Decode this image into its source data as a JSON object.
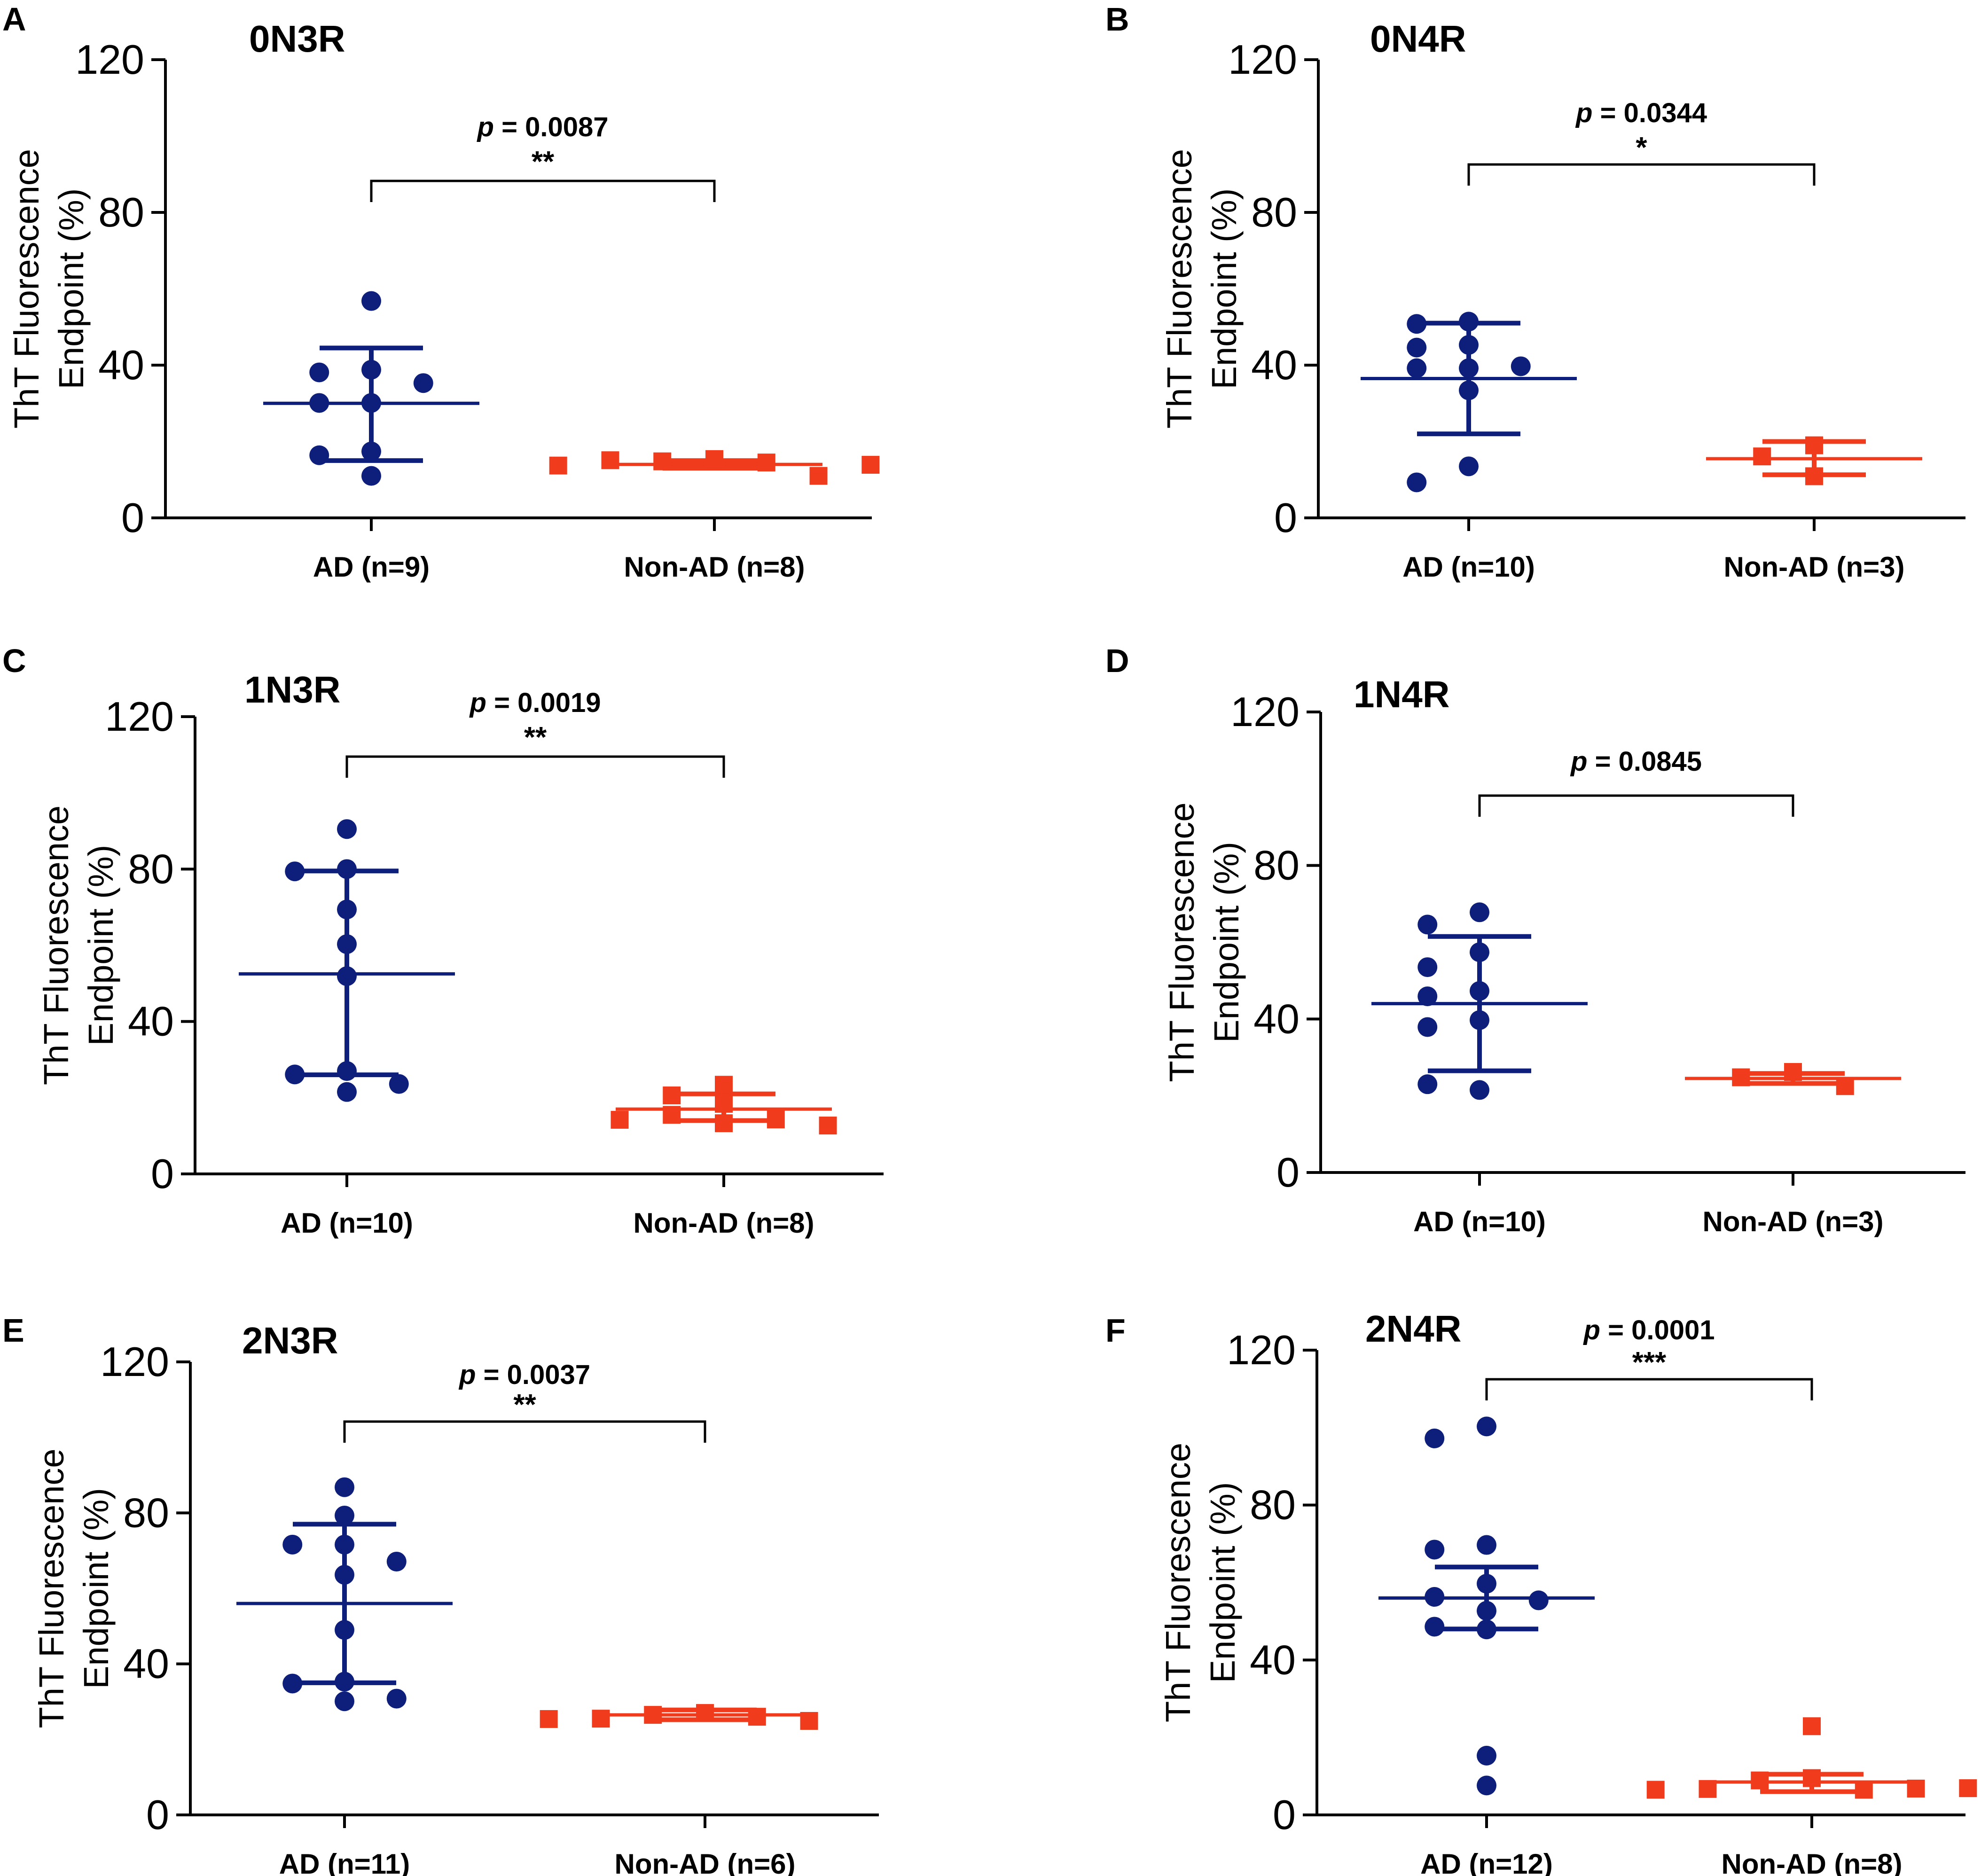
{
  "figure": {
    "y_axis_label_line1": "ThT Fluorescence",
    "y_axis_label_line2": "Endpoint (%)",
    "colors": {
      "ad": "#0d1f7a",
      "non_ad": "#f03b1c",
      "axis": "#000000"
    }
  },
  "chart_data": [
    {
      "panel": "A",
      "title": "0N3R",
      "type": "scatter",
      "ylim": [
        0,
        120
      ],
      "yticks": [
        0,
        40,
        80,
        120
      ],
      "categories": [
        {
          "label": "AD (n=9)",
          "values": [
            56.8,
            38.8,
            38.1,
            35.3,
            30.1,
            30.1,
            17.4,
            16.4,
            11.0
          ],
          "mean": 30.0,
          "sd_low": 15.0,
          "sd_high": 44.5
        },
        {
          "label": "Non-AD (n=8)",
          "values": [
            15.4,
            14.8,
            14.5,
            15.1,
            11.0,
            13.7,
            13.9,
            15.3
          ],
          "mean": 14.0,
          "sd_low": 13.0,
          "sd_high": 15.0
        }
      ],
      "comparison": {
        "p_label": "p",
        "p_text": " = 0.0087",
        "stars": "**"
      }
    },
    {
      "panel": "B",
      "title": "0N4R",
      "type": "scatter",
      "ylim": [
        0,
        120
      ],
      "yticks": [
        0,
        40,
        80,
        120
      ],
      "categories": [
        {
          "label": "AD (n=10)",
          "values": [
            51.4,
            50.8,
            45.3,
            44.6,
            39.2,
            39.2,
            39.7,
            33.4,
            13.5,
            9.3
          ],
          "mean": 36.5,
          "sd_low": 22.0,
          "sd_high": 51.0
        },
        {
          "label": "Non-AD (n=3)",
          "values": [
            19.0,
            16.1,
            10.9
          ],
          "mean": 15.5,
          "sd_low": 11.3,
          "sd_high": 20.0
        }
      ],
      "comparison": {
        "p_label": "p",
        "p_text": " = 0.0344",
        "stars": "*"
      }
    },
    {
      "panel": "C",
      "title": "1N3R",
      "type": "scatter",
      "ylim": [
        0,
        120
      ],
      "yticks": [
        0,
        40,
        80,
        120
      ],
      "categories": [
        {
          "label": "AD (n=10)",
          "values": [
            90.5,
            80.0,
            79.4,
            69.4,
            60.3,
            51.9,
            27.0,
            26.1,
            23.6,
            21.5
          ],
          "mean": 52.5,
          "sd_low": 26.0,
          "sd_high": 79.5
        },
        {
          "label": "Non-AD (n=8)",
          "values": [
            23.4,
            20.6,
            18.4,
            15.5,
            13.3,
            14.3,
            14.2,
            12.7
          ],
          "mean": 17.0,
          "sd_low": 14.0,
          "sd_high": 21.0
        }
      ],
      "comparison": {
        "p_label": "p",
        "p_text": " = 0.0019",
        "stars": "**"
      }
    },
    {
      "panel": "D",
      "title": "1N4R",
      "type": "scatter",
      "ylim": [
        0,
        120
      ],
      "yticks": [
        0,
        40,
        80,
        120
      ],
      "categories": [
        {
          "label": "AD (n=10)",
          "values": [
            67.8,
            64.6,
            57.4,
            53.5,
            47.3,
            45.9,
            39.7,
            37.9,
            21.5,
            23.0
          ],
          "mean": 44.0,
          "sd_low": 26.5,
          "sd_high": 61.5
        },
        {
          "label": "Non-AD (n=3)",
          "values": [
            26.2,
            24.8,
            22.5
          ],
          "mean": 24.5,
          "sd_low": 23.2,
          "sd_high": 25.8
        }
      ],
      "comparison": {
        "p_label": "p",
        "p_text": " = 0.0845",
        "stars": ""
      }
    },
    {
      "panel": "E",
      "title": "2N3R",
      "type": "scatter",
      "ylim": [
        0,
        120
      ],
      "yticks": [
        0,
        40,
        80,
        120
      ],
      "categories": [
        {
          "label": "AD (n=11)",
          "values": [
            86.8,
            79.3,
            71.6,
            71.6,
            67.1,
            63.6,
            49.0,
            35.3,
            34.8,
            30.8,
            30.1
          ],
          "mean": 56.0,
          "sd_low": 35.0,
          "sd_high": 77.0
        },
        {
          "label": "Non-AD (n=6)",
          "values": [
            27.0,
            26.5,
            26.0,
            25.5,
            24.9,
            25.4
          ],
          "mean": 26.5,
          "sd_low": 25.2,
          "sd_high": 27.8
        }
      ],
      "comparison": {
        "p_label": "p",
        "p_text": " = 0.0037",
        "stars": "**"
      }
    },
    {
      "panel": "F",
      "title": "2N4R",
      "type": "scatter",
      "ylim": [
        0,
        120
      ],
      "yticks": [
        0,
        40,
        80,
        120
      ],
      "categories": [
        {
          "label": "AD (n=12)",
          "values": [
            100.3,
            97.2,
            69.7,
            68.5,
            59.7,
            56.3,
            55.4,
            52.7,
            48.6,
            47.9,
            15.3,
            7.6
          ],
          "mean": 56.0,
          "sd_low": 48.0,
          "sd_high": 64.0
        },
        {
          "label": "Non-AD (n=8)",
          "values": [
            22.9,
            9.5,
            8.9,
            6.5,
            6.7,
            6.8,
            6.5,
            6.9
          ],
          "mean": 8.5,
          "sd_low": 6.0,
          "sd_high": 10.5
        }
      ],
      "comparison": {
        "p_label": "p",
        "p_text": " = 0.0001",
        "stars": "***"
      }
    }
  ]
}
